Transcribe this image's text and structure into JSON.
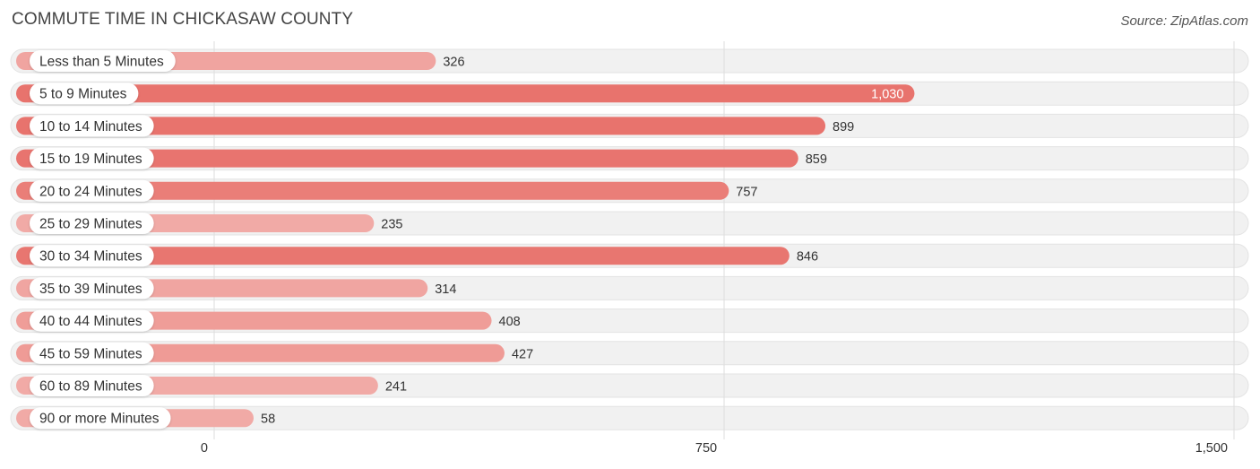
{
  "header": {
    "title": "COMMUTE TIME IN CHICKASAW COUNTY",
    "source": "Source: ZipAtlas.com"
  },
  "colors": {
    "bar_strong": "#e8736d",
    "bar_light": "#f1aaa6",
    "track": "#f1f1f1",
    "grid": "#dddddd",
    "text": "#333333"
  },
  "chart_data": {
    "type": "bar",
    "orientation": "horizontal",
    "title": "COMMUTE TIME IN CHICKASAW COUNTY",
    "categories": [
      "Less than 5 Minutes",
      "5 to 9 Minutes",
      "10 to 14 Minutes",
      "15 to 19 Minutes",
      "20 to 24 Minutes",
      "25 to 29 Minutes",
      "30 to 34 Minutes",
      "35 to 39 Minutes",
      "40 to 44 Minutes",
      "45 to 59 Minutes",
      "60 to 89 Minutes",
      "90 or more Minutes"
    ],
    "values": [
      326,
      1030,
      899,
      859,
      757,
      235,
      846,
      314,
      408,
      427,
      241,
      58
    ],
    "value_labels": [
      "326",
      "1,030",
      "899",
      "859",
      "757",
      "235",
      "846",
      "314",
      "408",
      "427",
      "241",
      "58"
    ],
    "xlim": [
      0,
      1500
    ],
    "xticks": [
      0,
      750,
      1500
    ],
    "xtick_labels": [
      "0",
      "750",
      "1,500"
    ],
    "xlabel": "",
    "ylabel": "",
    "grid": true
  }
}
